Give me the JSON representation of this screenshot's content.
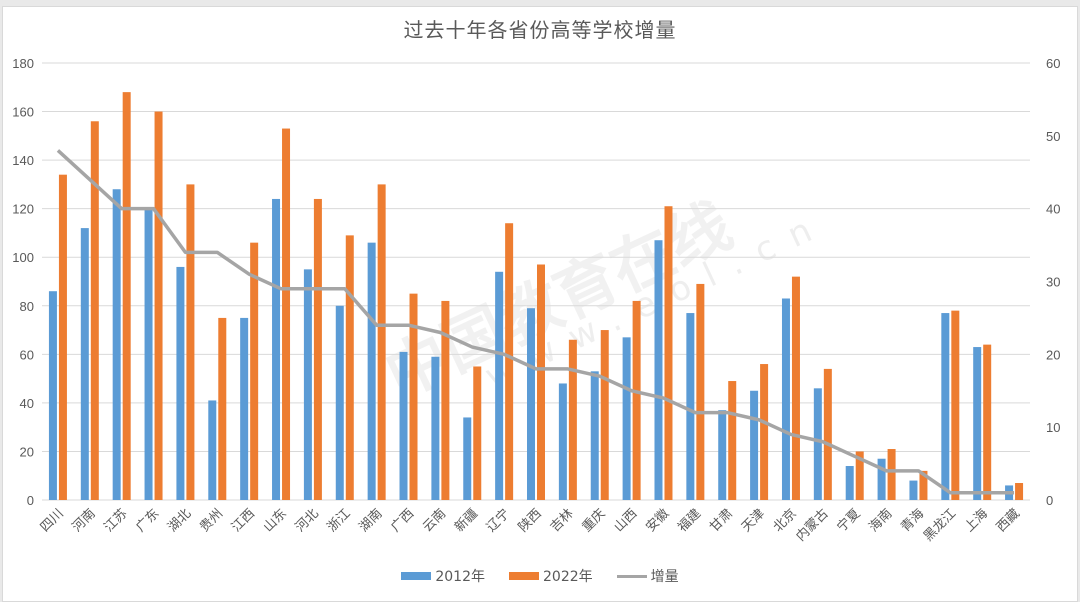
{
  "chart_data": {
    "type": "bar",
    "title": "过去十年各省份高等学校增量",
    "xlabel": "",
    "ylabel": "",
    "ylim": [
      0,
      180
    ],
    "y2lim": [
      0,
      60
    ],
    "yticks": [
      0,
      20,
      40,
      60,
      80,
      100,
      120,
      140,
      160,
      180
    ],
    "y2ticks": [
      0,
      10,
      20,
      30,
      40,
      50,
      60
    ],
    "grid": true,
    "legend_position": "bottom",
    "categories": [
      "四川",
      "河南",
      "江苏",
      "广东",
      "湖北",
      "贵州",
      "江西",
      "山东",
      "河北",
      "浙江",
      "湖南",
      "广西",
      "云南",
      "新疆",
      "辽宁",
      "陕西",
      "吉林",
      "重庆",
      "山西",
      "安徽",
      "福建",
      "甘肃",
      "天津",
      "北京",
      "内蒙古",
      "宁夏",
      "海南",
      "青海",
      "黑龙江",
      "上海",
      "西藏"
    ],
    "series": [
      {
        "name": "2012年",
        "type": "bar",
        "axis": "left",
        "color": "#5b9bd5",
        "values": [
          86,
          112,
          128,
          120,
          96,
          41,
          75,
          124,
          95,
          80,
          106,
          61,
          59,
          34,
          94,
          79,
          48,
          53,
          67,
          107,
          77,
          37,
          45,
          83,
          46,
          14,
          17,
          8,
          77,
          63,
          6
        ]
      },
      {
        "name": "2022年",
        "type": "bar",
        "axis": "left",
        "color": "#ed7d31",
        "values": [
          134,
          156,
          168,
          160,
          130,
          75,
          106,
          153,
          124,
          109,
          130,
          85,
          82,
          55,
          114,
          97,
          66,
          70,
          82,
          121,
          89,
          49,
          56,
          92,
          54,
          20,
          21,
          12,
          78,
          64,
          7
        ]
      },
      {
        "name": "增量",
        "type": "line",
        "axis": "right",
        "color": "#a5a5a5",
        "values": [
          48,
          44,
          40,
          40,
          34,
          34,
          31,
          29,
          29,
          29,
          24,
          24,
          23,
          21,
          20,
          18,
          18,
          17,
          15,
          14,
          12,
          12,
          11,
          9,
          8,
          6,
          4,
          4,
          1,
          1,
          1
        ]
      }
    ]
  },
  "watermark": {
    "main": "中国教育在线",
    "sub": "www.eol.cn"
  }
}
